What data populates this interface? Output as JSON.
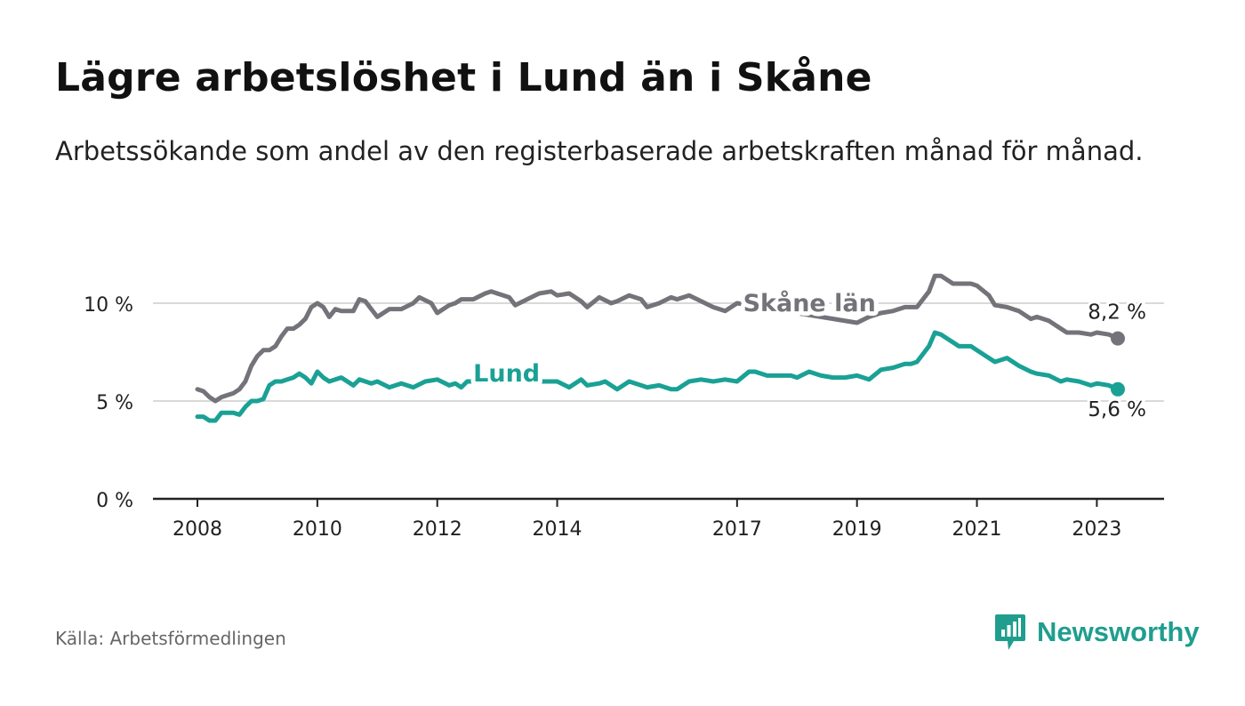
{
  "title": "Lägre arbetslöshet i Lund än i Skåne",
  "subtitle": "Arbetssökande som andel av den registerbaserade arbetskraften månad för månad.",
  "source": "Källa: Arbetsförmedlingen",
  "brand": "Newsworthy",
  "colors": {
    "skane": "#74737a",
    "lund": "#1aa195",
    "grid": "#d9d9d9",
    "axis": "#222222",
    "brand": "#1f9e8e"
  },
  "chart_data": {
    "type": "line",
    "title": "Lägre arbetslöshet i Lund än i Skåne",
    "xlabel": "",
    "ylabel": "",
    "xlim": [
      2008.0,
      2023.35
    ],
    "ylim": [
      0,
      10
    ],
    "yticks": [
      0,
      5,
      10
    ],
    "ytick_labels": [
      "0 %",
      "5 %",
      "10 %"
    ],
    "xticks": [
      2008,
      2010,
      2012,
      2014,
      2017,
      2019,
      2021,
      2023
    ],
    "xtick_labels": [
      "2008",
      "2010",
      "2012",
      "2014",
      "2017",
      "2019",
      "2021",
      "2023"
    ],
    "grid": true,
    "series": [
      {
        "name": "Skåne län",
        "color": "#74737a",
        "end_label": "8,2 %",
        "x": [
          2008.0,
          2008.1,
          2008.2,
          2008.3,
          2008.4,
          2008.5,
          2008.6,
          2008.7,
          2008.8,
          2008.9,
          2009.0,
          2009.1,
          2009.2,
          2009.3,
          2009.4,
          2009.5,
          2009.6,
          2009.7,
          2009.8,
          2009.9,
          2010.0,
          2010.1,
          2010.2,
          2010.3,
          2010.4,
          2010.5,
          2010.6,
          2010.7,
          2010.8,
          2010.9,
          2011.0,
          2011.2,
          2011.4,
          2011.6,
          2011.7,
          2011.9,
          2012.0,
          2012.2,
          2012.3,
          2012.4,
          2012.6,
          2012.8,
          2012.9,
          2013.0,
          2013.2,
          2013.3,
          2013.5,
          2013.7,
          2013.9,
          2014.0,
          2014.2,
          2014.3,
          2014.4,
          2014.5,
          2014.7,
          2014.9,
          2015.0,
          2015.2,
          2015.4,
          2015.5,
          2015.7,
          2015.9,
          2016.0,
          2016.2,
          2016.4,
          2016.6,
          2016.8,
          2017.0,
          2019.0,
          2019.2,
          2019.4,
          2019.6,
          2019.8,
          2019.9,
          2020.0,
          2020.2,
          2020.3,
          2020.4,
          2020.6,
          2020.7,
          2020.9,
          2021.0,
          2021.2,
          2021.3,
          2021.5,
          2021.7,
          2021.9,
          2022.0,
          2022.2,
          2022.4,
          2022.5,
          2022.7,
          2022.9,
          2023.0,
          2023.2,
          2023.35
        ],
        "y": [
          5.6,
          5.5,
          5.2,
          5.0,
          5.2,
          5.3,
          5.4,
          5.6,
          6.0,
          6.8,
          7.3,
          7.6,
          7.6,
          7.8,
          8.3,
          8.7,
          8.7,
          8.9,
          9.2,
          9.8,
          10.0,
          9.8,
          9.3,
          9.7,
          9.6,
          9.6,
          9.6,
          10.2,
          10.1,
          9.7,
          9.3,
          9.7,
          9.7,
          10.0,
          10.3,
          10.0,
          9.5,
          9.9,
          10.0,
          10.2,
          10.2,
          10.5,
          10.6,
          10.5,
          10.3,
          9.9,
          10.2,
          10.5,
          10.6,
          10.4,
          10.5,
          10.3,
          10.1,
          9.8,
          10.3,
          10.0,
          10.1,
          10.4,
          10.2,
          9.8,
          10.0,
          10.3,
          10.2,
          10.4,
          10.1,
          9.8,
          9.6,
          10.0,
          9.0,
          9.3,
          9.5,
          9.6,
          9.8,
          9.8,
          9.8,
          10.6,
          11.4,
          11.4,
          11.0,
          11.0,
          11.0,
          10.9,
          10.4,
          9.9,
          9.8,
          9.6,
          9.2,
          9.3,
          9.1,
          8.7,
          8.5,
          8.5,
          8.4,
          8.5,
          8.4,
          8.2
        ]
      },
      {
        "name": "Lund",
        "color": "#1aa195",
        "end_label": "5,6 %",
        "x": [
          2008.0,
          2008.1,
          2008.2,
          2008.3,
          2008.4,
          2008.5,
          2008.6,
          2008.7,
          2008.8,
          2008.9,
          2009.0,
          2009.1,
          2009.2,
          2009.3,
          2009.4,
          2009.5,
          2009.6,
          2009.7,
          2009.8,
          2009.9,
          2010.0,
          2010.1,
          2010.2,
          2010.3,
          2010.4,
          2010.5,
          2010.6,
          2010.7,
          2010.8,
          2010.9,
          2011.0,
          2011.2,
          2011.4,
          2011.6,
          2011.8,
          2012.0,
          2012.2,
          2012.3,
          2012.4,
          2012.5,
          2014.0,
          2014.2,
          2014.4,
          2014.5,
          2014.7,
          2014.8,
          2015.0,
          2015.2,
          2015.4,
          2015.5,
          2015.7,
          2015.9,
          2016.0,
          2016.2,
          2016.4,
          2016.6,
          2016.8,
          2017.0,
          2017.2,
          2017.3,
          2017.5,
          2017.7,
          2017.9,
          2018.0,
          2018.2,
          2018.4,
          2018.6,
          2018.8,
          2019.0,
          2019.2,
          2019.4,
          2019.6,
          2019.8,
          2019.9,
          2020.0,
          2020.2,
          2020.3,
          2020.4,
          2020.6,
          2020.7,
          2020.9,
          2021.0,
          2021.2,
          2021.3,
          2021.5,
          2021.7,
          2021.9,
          2022.0,
          2022.2,
          2022.4,
          2022.5,
          2022.7,
          2022.9,
          2023.0,
          2023.2,
          2023.35
        ],
        "y": [
          4.2,
          4.2,
          4.0,
          4.0,
          4.4,
          4.4,
          4.4,
          4.3,
          4.7,
          5.0,
          5.0,
          5.1,
          5.8,
          6.0,
          6.0,
          6.1,
          6.2,
          6.4,
          6.2,
          5.9,
          6.5,
          6.2,
          6.0,
          6.1,
          6.2,
          6.0,
          5.8,
          6.1,
          6.0,
          5.9,
          6.0,
          5.7,
          5.9,
          5.7,
          6.0,
          6.1,
          5.8,
          5.9,
          5.7,
          6.0,
          6.0,
          5.7,
          6.1,
          5.8,
          5.9,
          6.0,
          5.6,
          6.0,
          5.8,
          5.7,
          5.8,
          5.6,
          5.6,
          6.0,
          6.1,
          6.0,
          6.1,
          6.0,
          6.5,
          6.5,
          6.3,
          6.3,
          6.3,
          6.2,
          6.5,
          6.3,
          6.2,
          6.2,
          6.3,
          6.1,
          6.6,
          6.7,
          6.9,
          6.9,
          7.0,
          7.8,
          8.5,
          8.4,
          8.0,
          7.8,
          7.8,
          7.6,
          7.2,
          7.0,
          7.2,
          6.8,
          6.5,
          6.4,
          6.3,
          6.0,
          6.1,
          6.0,
          5.8,
          5.9,
          5.8,
          5.6
        ]
      }
    ]
  }
}
